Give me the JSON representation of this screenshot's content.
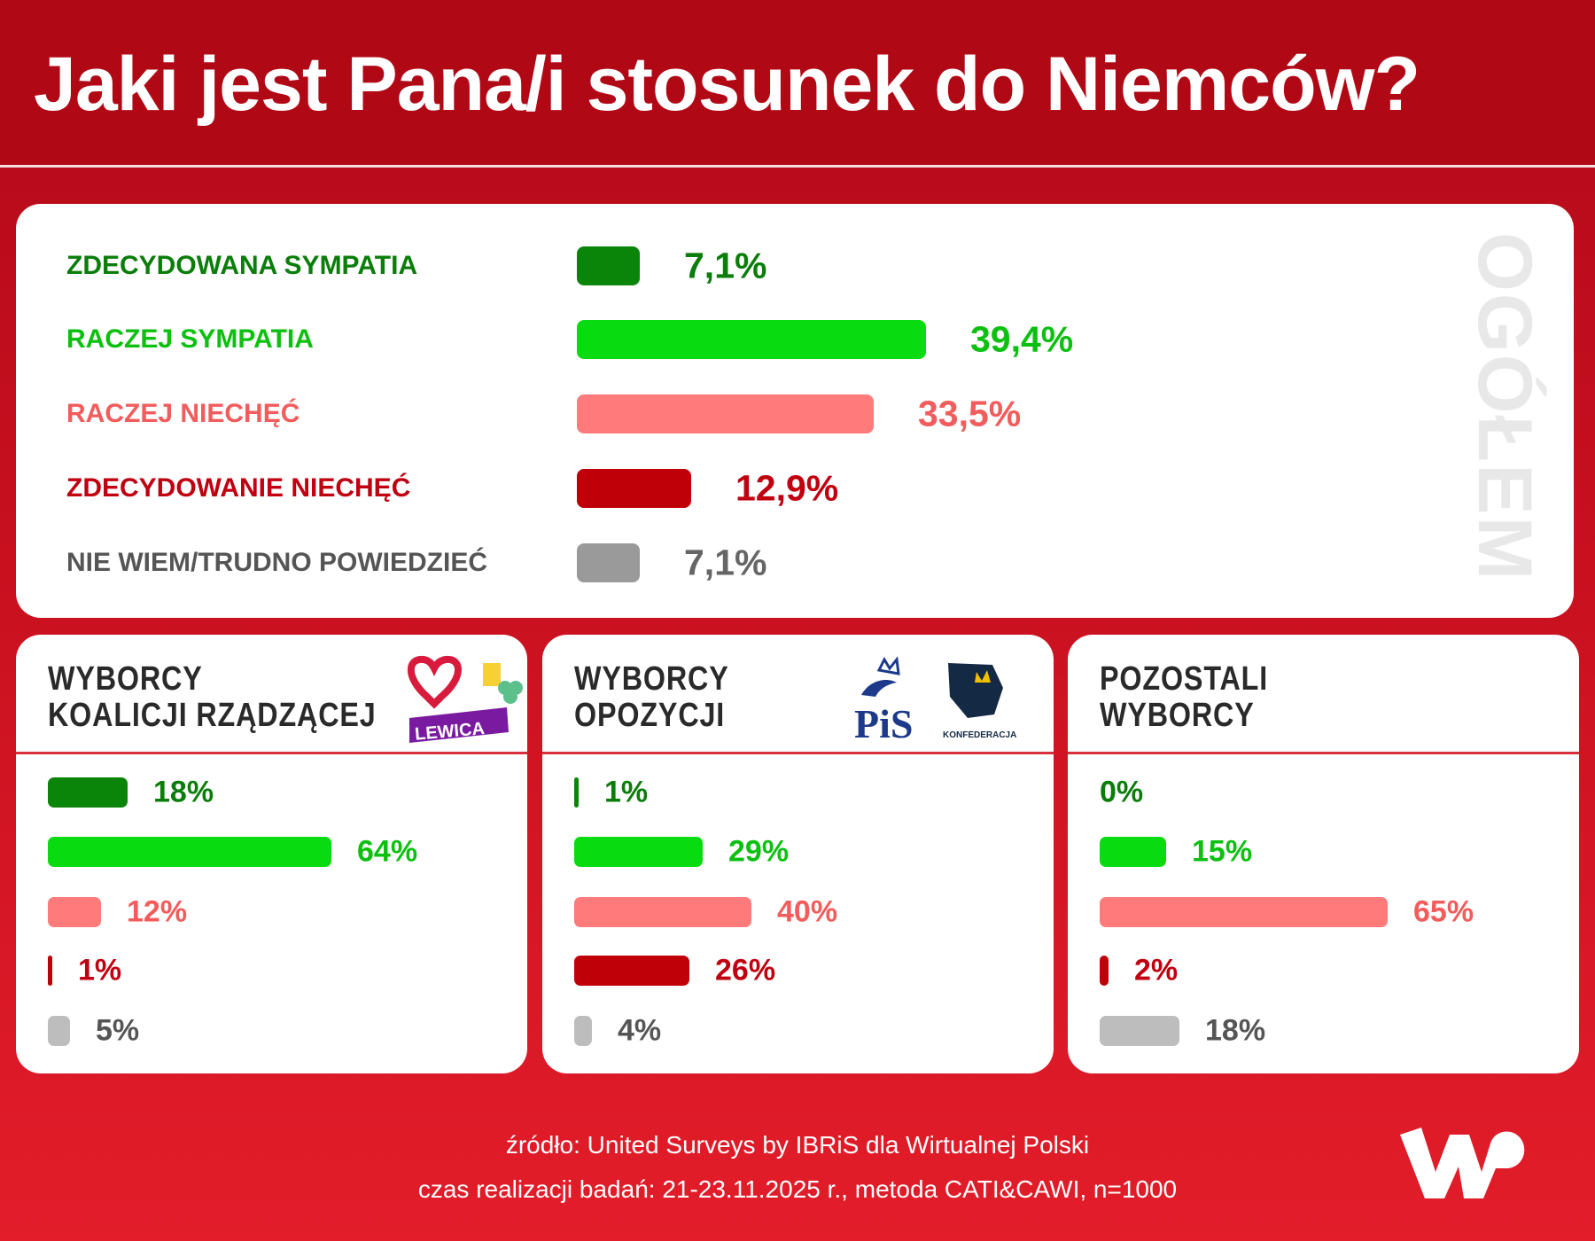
{
  "title": "Jaki jest Pana/i stosunek do Niemców?",
  "overall_label": "OGÓŁEM",
  "colors": {
    "strong_sympathy": "#0a850a",
    "rather_sympathy": "#08dc10",
    "rather_dislike": "#ff7b7b",
    "strong_dislike": "#c00008",
    "dont_know": "#9a9a9a",
    "dont_know_light": "#bdbdbd",
    "background": "#c8101f"
  },
  "chart_data": [
    {
      "type": "bar",
      "title": "OGÓŁEM",
      "categories": [
        "ZDECYDOWANA SYMPATIA",
        "RACZEJ SYMPATIA",
        "RACZEJ NIECHĘĆ",
        "ZDECYDOWANIE NIECHĘĆ",
        "NIE WIEM/TRUDNO POWIEDZIEĆ"
      ],
      "values": [
        7.1,
        39.4,
        33.5,
        12.9,
        7.1
      ],
      "labels": [
        "7,1%",
        "39,4%",
        "33,5%",
        "12,9%",
        "7,1%"
      ]
    },
    {
      "type": "bar",
      "title": "WYBORCY\nKOALICJI RZĄDZĄCEJ",
      "title_lines": [
        "WYBORCY",
        "KOALICJI RZĄDZĄCEJ"
      ],
      "values": [
        18,
        64,
        12,
        1,
        5
      ],
      "labels": [
        "18%",
        "64%",
        "12%",
        "1%",
        "5%"
      ]
    },
    {
      "type": "bar",
      "title": "WYBORCY\nOPOZYCJI",
      "title_lines": [
        "WYBORCY",
        "OPOZYCJI"
      ],
      "values": [
        1,
        29,
        40,
        26,
        4
      ],
      "labels": [
        "1%",
        "29%",
        "40%",
        "26%",
        "4%"
      ]
    },
    {
      "type": "bar",
      "title": "POZOSTALI\nWYBORCY",
      "title_lines": [
        "POZOSTALI",
        "WYBORCY"
      ],
      "values": [
        0,
        15,
        65,
        2,
        18
      ],
      "labels": [
        "0%",
        "15%",
        "65%",
        "2%",
        "18%"
      ]
    }
  ],
  "logos": {
    "lewica": "LEWICA",
    "pis": "PiS",
    "konfederacja": "KONFEDERACJA",
    "wp": "WP"
  },
  "footer": {
    "source": "źródło: United Surveys by IBRiS dla Wirtualnej Polski",
    "method": "czas realizacji badań: 21-23.11.2025 r., metoda CATI&CAWI, n=1000"
  }
}
